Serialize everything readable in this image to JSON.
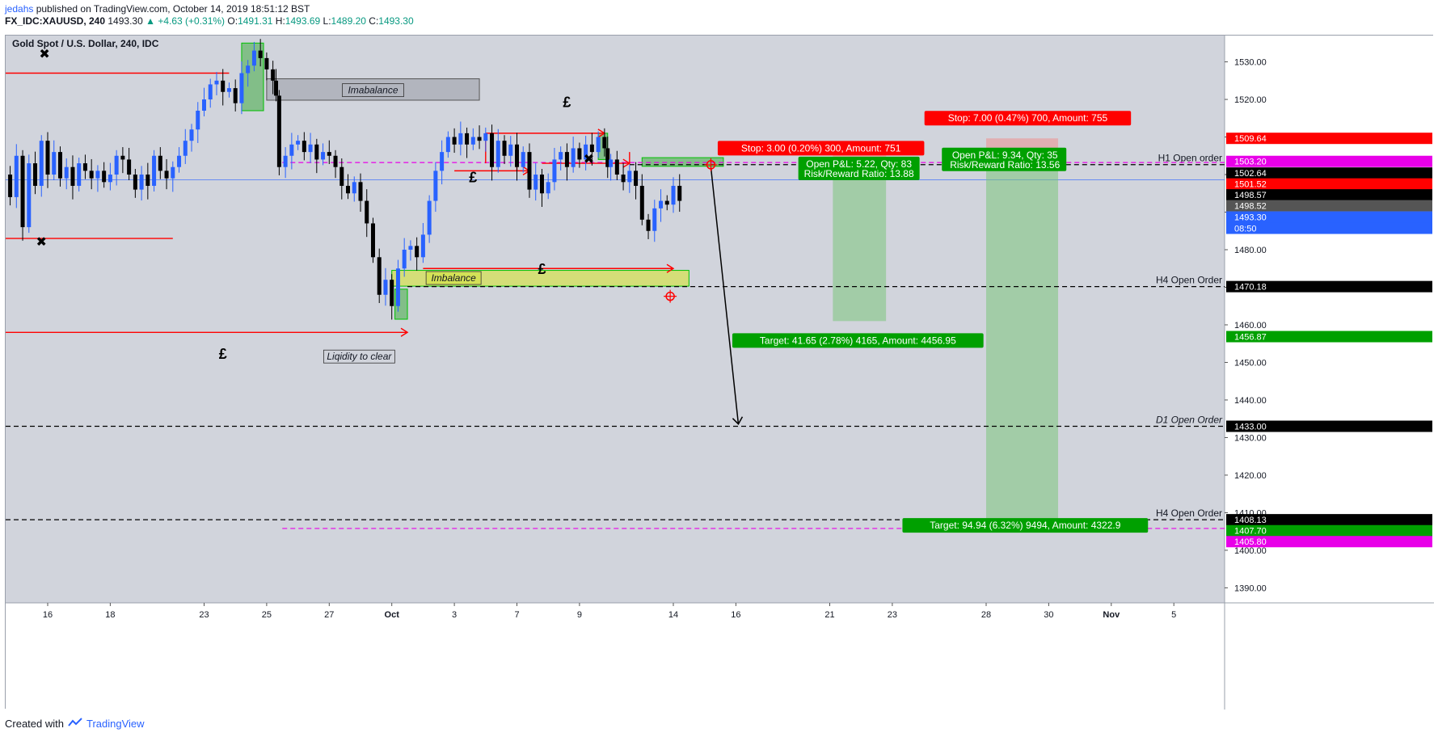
{
  "header": {
    "author": "jedahs",
    "published": " published on TradingView.com, October 14, 2019 18:51:12 BST",
    "symbol": "FX_IDC:XAUUSD, 240",
    "price": "1493.30",
    "change": "▲ +4.63 (+0.31%)",
    "o_label": "O:",
    "o": "1491.31",
    "h_label": "H:",
    "h": "1493.69",
    "l_label": "L:",
    "l": "1489.20",
    "c_label": "C:",
    "c": "1493.30"
  },
  "footer": {
    "created": "Created with",
    "brand": "TradingView"
  },
  "colors": {
    "up": "#2962ff",
    "down": "#000000",
    "bg": "#d1d4dc",
    "red": "#ff0000",
    "green": "#00a000",
    "magenta": "#e800e8"
  },
  "chart_data": {
    "type": "candlestick",
    "title": "Gold Spot / U.S. Dollar, 240, IDC",
    "ylim": [
      1386,
      1537
    ],
    "y_ticks": [
      1390,
      1400,
      1410,
      1420,
      1430,
      1440,
      1450,
      1460,
      1470,
      1480,
      1490,
      1500,
      1510,
      1520,
      1530
    ],
    "x_ticks": [
      {
        "label": "16",
        "day": 0
      },
      {
        "label": "18",
        "day": 2
      },
      {
        "label": "23",
        "day": 5
      },
      {
        "label": "25",
        "day": 7
      },
      {
        "label": "27",
        "day": 9
      },
      {
        "label": "Oct",
        "day": 11,
        "bold": true
      },
      {
        "label": "3",
        "day": 13
      },
      {
        "label": "7",
        "day": 15
      },
      {
        "label": "9",
        "day": 17
      },
      {
        "label": "14",
        "day": 20
      },
      {
        "label": "16",
        "day": 22
      },
      {
        "label": "21",
        "day": 25
      },
      {
        "label": "23",
        "day": 27
      },
      {
        "label": "28",
        "day": 30
      },
      {
        "label": "30",
        "day": 32
      },
      {
        "label": "Nov",
        "day": 34,
        "bold": true
      },
      {
        "label": "5",
        "day": 36
      }
    ],
    "price_path": [
      [
        -1.4,
        1500
      ],
      [
        -1.2,
        1494
      ],
      [
        -1.0,
        1505
      ],
      [
        -0.8,
        1486
      ],
      [
        -0.6,
        1503
      ],
      [
        -0.4,
        1497
      ],
      [
        -0.2,
        1509
      ],
      [
        0.0,
        1500
      ],
      [
        0.2,
        1506
      ],
      [
        0.4,
        1499
      ],
      [
        0.6,
        1502
      ],
      [
        0.8,
        1497
      ],
      [
        1.0,
        1503
      ],
      [
        1.2,
        1501
      ],
      [
        1.4,
        1499
      ],
      [
        1.6,
        1501
      ],
      [
        1.8,
        1498
      ],
      [
        2.0,
        1500
      ],
      [
        2.2,
        1505
      ],
      [
        2.4,
        1504
      ],
      [
        2.6,
        1500
      ],
      [
        2.8,
        1496
      ],
      [
        3.0,
        1500
      ],
      [
        3.2,
        1497
      ],
      [
        3.4,
        1505
      ],
      [
        3.6,
        1501
      ],
      [
        3.8,
        1499
      ],
      [
        4.0,
        1502
      ],
      [
        4.2,
        1505
      ],
      [
        4.4,
        1509
      ],
      [
        4.6,
        1512
      ],
      [
        4.8,
        1517
      ],
      [
        5.0,
        1520
      ],
      [
        5.2,
        1524
      ],
      [
        5.4,
        1525
      ],
      [
        5.6,
        1522
      ],
      [
        5.8,
        1523
      ],
      [
        6.0,
        1519
      ],
      [
        6.2,
        1527
      ],
      [
        6.4,
        1529
      ],
      [
        6.6,
        1533
      ],
      [
        6.8,
        1531
      ],
      [
        7.0,
        1528
      ],
      [
        7.2,
        1525
      ],
      [
        7.3,
        1521
      ],
      [
        7.4,
        1502
      ],
      [
        7.6,
        1505
      ],
      [
        7.8,
        1508
      ],
      [
        8.0,
        1509
      ],
      [
        8.2,
        1506
      ],
      [
        8.4,
        1508
      ],
      [
        8.6,
        1504
      ],
      [
        8.8,
        1506
      ],
      [
        9.0,
        1505
      ],
      [
        9.2,
        1502
      ],
      [
        9.4,
        1497
      ],
      [
        9.6,
        1495
      ],
      [
        9.8,
        1498
      ],
      [
        10.0,
        1493
      ],
      [
        10.2,
        1487
      ],
      [
        10.4,
        1478
      ],
      [
        10.6,
        1468
      ],
      [
        10.8,
        1472
      ],
      [
        11.0,
        1465
      ],
      [
        11.2,
        1475
      ],
      [
        11.4,
        1480
      ],
      [
        11.6,
        1481
      ],
      [
        11.8,
        1478
      ],
      [
        12.0,
        1484
      ],
      [
        12.2,
        1493
      ],
      [
        12.4,
        1501
      ],
      [
        12.6,
        1506
      ],
      [
        12.8,
        1510
      ],
      [
        13.0,
        1508
      ],
      [
        13.2,
        1511
      ],
      [
        13.4,
        1508
      ],
      [
        13.6,
        1510
      ],
      [
        13.8,
        1509
      ],
      [
        14.0,
        1511
      ],
      [
        14.2,
        1502
      ],
      [
        14.4,
        1509
      ],
      [
        14.6,
        1505
      ],
      [
        14.8,
        1508
      ],
      [
        15.0,
        1502
      ],
      [
        15.2,
        1506
      ],
      [
        15.4,
        1496
      ],
      [
        15.6,
        1500
      ],
      [
        15.8,
        1495
      ],
      [
        16.0,
        1498
      ],
      [
        16.2,
        1504
      ],
      [
        16.4,
        1506
      ],
      [
        16.6,
        1502
      ],
      [
        16.8,
        1507
      ],
      [
        17.0,
        1504
      ],
      [
        17.2,
        1508
      ],
      [
        17.4,
        1506
      ],
      [
        17.6,
        1510
      ],
      [
        17.8,
        1507
      ],
      [
        17.9,
        1502
      ],
      [
        18.0,
        1504
      ],
      [
        18.2,
        1500
      ],
      [
        18.4,
        1498
      ],
      [
        18.6,
        1501
      ],
      [
        18.8,
        1497
      ],
      [
        19.0,
        1488
      ],
      [
        19.2,
        1485
      ],
      [
        19.4,
        1491
      ],
      [
        19.6,
        1493
      ],
      [
        19.8,
        1492
      ],
      [
        20.0,
        1497
      ],
      [
        20.2,
        1493
      ]
    ],
    "levels": [
      {
        "label": "H1 Open order",
        "value": 1502.64,
        "style": "dash-black",
        "tag": "1502.64"
      },
      {
        "label": "H4 Open Order",
        "value": 1470.18,
        "style": "dash-black",
        "tag": "1470.18"
      },
      {
        "label": "D1 Open Order",
        "value": 1433.0,
        "style": "dash-black",
        "tag": "1433.00"
      },
      {
        "label": "H4 Open Order",
        "value": 1408.13,
        "style": "dash-black",
        "tag": "1408.13"
      },
      {
        "label": "",
        "value": 1503.2,
        "style": "dash-magenta",
        "tag": "1503.20"
      },
      {
        "label": "",
        "value": 1405.8,
        "style": "dash-magenta",
        "tag": "1405.80"
      }
    ],
    "price_tags": [
      {
        "value": "1509.64",
        "color": "#ff0000"
      },
      {
        "value": "1503.20",
        "color": "#e800e8"
      },
      {
        "value": "1502.64",
        "color": "#000000"
      },
      {
        "value": "1501.52",
        "color": "#ff0000"
      },
      {
        "value": "1498.57",
        "color": "#000000"
      },
      {
        "value": "1498.52",
        "color": "#555555"
      },
      {
        "value": "1493.30",
        "color": "#2962ff"
      },
      {
        "value": "08:50",
        "color": "#2962ff"
      },
      {
        "value": "1470.18",
        "color": "#000000"
      },
      {
        "value": "1456.87",
        "color": "#00a000"
      },
      {
        "value": "1433.00",
        "color": "#000000"
      },
      {
        "value": "1408.13",
        "color": "#000000"
      },
      {
        "value": "1407.70",
        "color": "#00a000"
      },
      {
        "value": "1405.80",
        "color": "#e800e8"
      }
    ],
    "annotations": {
      "imbalance_top": "Imabalance",
      "imbalance_bottom": "Imbalance",
      "liquidity": "Liqidity to clear",
      "pound": "£",
      "cross": "✖",
      "pos1_stop": "Stop: 3.00 (0.20%) 300, Amount: 751",
      "pos1_pnl": "Open P&L: 5.22, Qty: 83",
      "pos1_rr": "Risk/Reward Ratio: 13.88",
      "pos1_target": "Target: 41.65 (2.78%) 4165, Amount: 4456.95",
      "pos2_stop": "Stop: 7.00 (0.47%) 700, Amount: 755",
      "pos2_pnl": "Open P&L: 9.34, Qty: 35",
      "pos2_rr": "Risk/Reward Ratio: 13.56",
      "pos2_target": "Target: 94.94 (6.32%) 9494, Amount: 4322.9"
    }
  }
}
